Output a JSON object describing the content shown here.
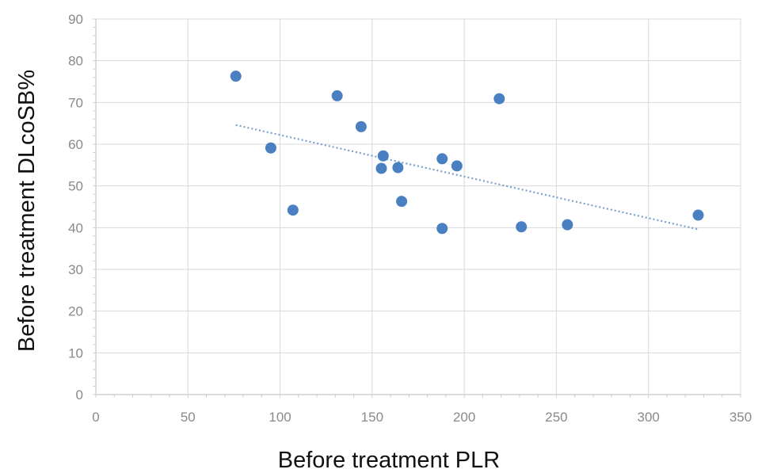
{
  "chart_data": {
    "type": "scatter",
    "title": "",
    "xlabel": "Before treatment PLR",
    "ylabel": "Before treatment DLcoSB%",
    "xlim": [
      0,
      350
    ],
    "ylim": [
      0,
      90
    ],
    "xticks": [
      0,
      50,
      100,
      150,
      200,
      250,
      300,
      350
    ],
    "yticks": [
      0,
      10,
      20,
      30,
      40,
      50,
      60,
      70,
      80,
      90
    ],
    "grid": true,
    "legend": "none",
    "series": [
      {
        "points": [
          {
            "x": 76,
            "y": 76.3
          },
          {
            "x": 95,
            "y": 59.1
          },
          {
            "x": 107,
            "y": 44.2
          },
          {
            "x": 131,
            "y": 71.6
          },
          {
            "x": 144,
            "y": 64.2
          },
          {
            "x": 155,
            "y": 54.2
          },
          {
            "x": 156,
            "y": 57.2
          },
          {
            "x": 164,
            "y": 54.4
          },
          {
            "x": 166,
            "y": 46.3
          },
          {
            "x": 188,
            "y": 56.5
          },
          {
            "x": 188,
            "y": 39.8
          },
          {
            "x": 196,
            "y": 54.8
          },
          {
            "x": 219,
            "y": 70.9
          },
          {
            "x": 231,
            "y": 40.2
          },
          {
            "x": 256,
            "y": 40.7
          },
          {
            "x": 327,
            "y": 43.0
          }
        ]
      }
    ],
    "trendline": {
      "type": "linear",
      "x_start": 76,
      "y_start": 64.6,
      "x_end": 327,
      "y_end": 39.6
    }
  },
  "colors": {
    "marker": "#4a7fc1",
    "trendline": "#7aa0cc",
    "grid": "#d9d9d9",
    "tick_label": "#8a8a8a",
    "axis_title": "#111111"
  }
}
